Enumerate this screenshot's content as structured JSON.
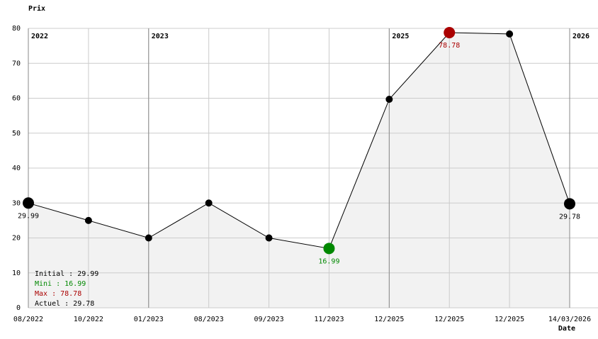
{
  "chart_data": {
    "type": "line",
    "ylabel": "Prix",
    "xlabel": "Date",
    "categories": [
      "08/2022",
      "10/2022",
      "01/2023",
      "08/2023",
      "09/2023",
      "11/2023",
      "12/2025",
      "12/2025",
      "12/2025",
      "14/03/2026"
    ],
    "series": [
      {
        "name": "Prix",
        "color": "#000000",
        "values": [
          29.99,
          25,
          20,
          30,
          20,
          16.99,
          59.7,
          78.78,
          78.4,
          29.78
        ]
      }
    ],
    "ylim": [
      0,
      80
    ],
    "yticks": [
      0,
      10,
      20,
      30,
      40,
      50,
      60,
      70,
      80
    ],
    "grid": true,
    "highlights": [
      {
        "index": 0,
        "color": "#000000"
      },
      {
        "index": 5,
        "color": "#008800"
      },
      {
        "index": 7,
        "color": "#aa0000"
      },
      {
        "index": 9,
        "color": "#000000"
      }
    ],
    "year_markers": [
      {
        "label": "2022",
        "index": 0
      },
      {
        "label": "2023",
        "index": 2
      },
      {
        "label": "2025",
        "index": 6
      },
      {
        "label": "2026",
        "index": 9
      }
    ],
    "summary": [
      {
        "text": "Initial : 29.99",
        "color": "#000000"
      },
      {
        "text": "Mini : 16.99",
        "color": "#008800"
      },
      {
        "text": "Max : 78.78",
        "color": "#aa0000"
      },
      {
        "text": "Actuel : 29.78",
        "color": "#000000"
      }
    ]
  }
}
